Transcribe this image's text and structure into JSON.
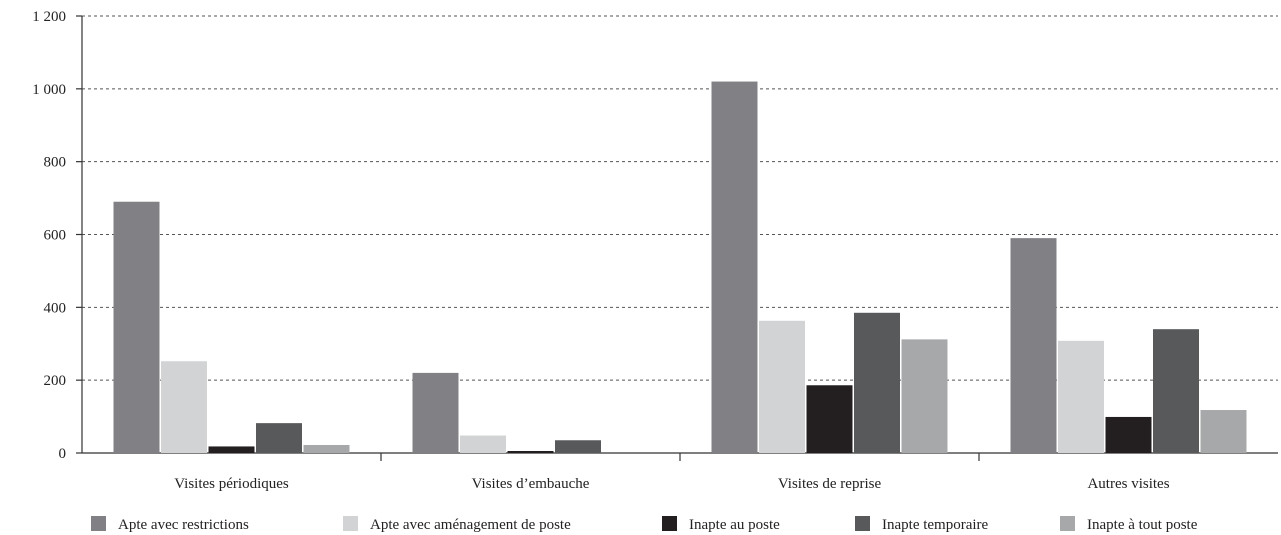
{
  "chart_data": {
    "type": "bar",
    "title": "",
    "xlabel": "",
    "ylabel": "",
    "ylim": [
      0,
      1200
    ],
    "yticks": [
      0,
      200,
      400,
      600,
      800,
      1000,
      1200
    ],
    "ytick_labels": [
      "0",
      "200",
      "400",
      "600",
      "800",
      "1 000",
      "1 200"
    ],
    "grid": "horizontal dashed",
    "legend_position": "bottom",
    "categories": [
      "Visites périodiques",
      "Visites d’embauche",
      "Visites de reprise",
      "Autres visites"
    ],
    "series": [
      {
        "name": "Apte avec restrictions",
        "color": "#818185",
        "values": [
          690,
          220,
          1020,
          590
        ]
      },
      {
        "name": "Apte avec aménagement de poste",
        "color": "#d2d3d5",
        "values": [
          252,
          48,
          363,
          308
        ]
      },
      {
        "name": "Inapte au poste",
        "color": "#231f20",
        "values": [
          18,
          5,
          186,
          99
        ]
      },
      {
        "name": "Inapte temporaire",
        "color": "#58595b",
        "values": [
          82,
          35,
          385,
          340
        ]
      },
      {
        "name": "Inapte à tout poste",
        "color": "#a7a8aa",
        "values": [
          22,
          0,
          312,
          118
        ]
      }
    ]
  }
}
